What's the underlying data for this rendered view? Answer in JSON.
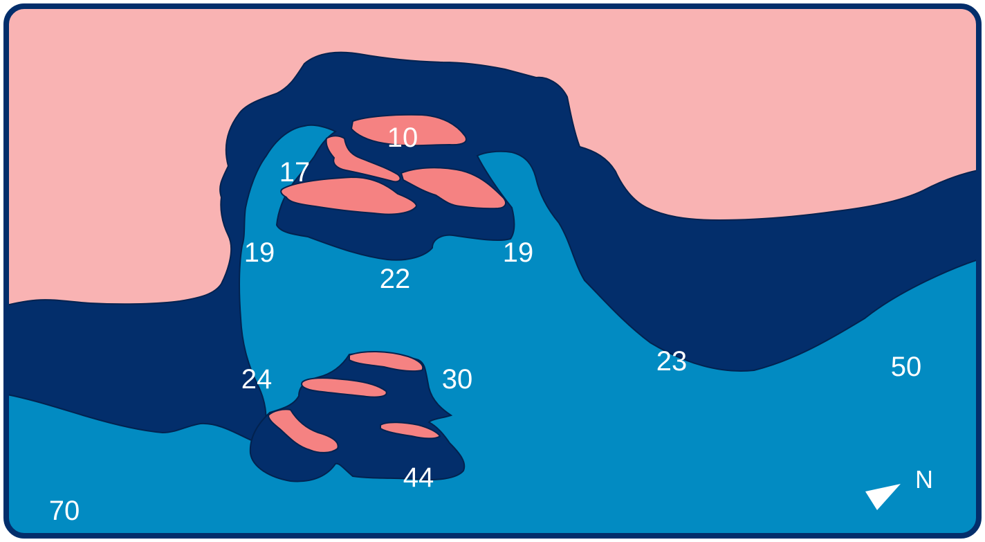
{
  "map": {
    "colors": {
      "land": "#f9b3b3",
      "rock": "#f58282",
      "shallow_water": "#032e6b",
      "deep_water": "#028bc2",
      "frame": "#032e6b",
      "labels": "#ffffff"
    },
    "depths": [
      "10",
      "17",
      "19",
      "22",
      "19",
      "24",
      "30",
      "44",
      "23",
      "50",
      "70"
    ],
    "compass": {
      "label": "N",
      "icon": "north-arrow-icon"
    }
  }
}
